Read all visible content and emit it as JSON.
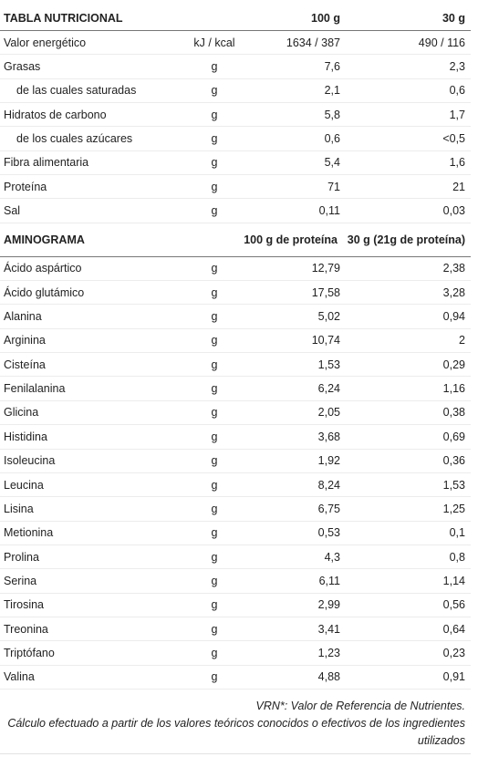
{
  "nutrition": {
    "header": {
      "title": "TABLA NUTRICIONAL",
      "col1": "100 g",
      "col2": "30 g"
    },
    "rows": [
      {
        "label": "Valor energético",
        "unit": "kJ / kcal",
        "v1": "1634 / 387",
        "v2": "490 / 116",
        "sub": false
      },
      {
        "label": "Grasas",
        "unit": "g",
        "v1": "7,6",
        "v2": "2,3",
        "sub": false
      },
      {
        "label": "de las cuales saturadas",
        "unit": "g",
        "v1": "2,1",
        "v2": "0,6",
        "sub": true
      },
      {
        "label": "Hidratos de carbono",
        "unit": "g",
        "v1": "5,8",
        "v2": "1,7",
        "sub": false
      },
      {
        "label": "de los cuales azúcares",
        "unit": "g",
        "v1": "0,6",
        "v2": "<0,5",
        "sub": true
      },
      {
        "label": "Fibra alimentaria",
        "unit": "g",
        "v1": "5,4",
        "v2": "1,6",
        "sub": false
      },
      {
        "label": "Proteína",
        "unit": "g",
        "v1": "71",
        "v2": "21",
        "sub": false
      },
      {
        "label": "Sal",
        "unit": "g",
        "v1": "0,11",
        "v2": "0,03",
        "sub": false
      }
    ]
  },
  "aminogram": {
    "header": {
      "title": "AMINOGRAMA",
      "col1": "100 g de proteína",
      "col2": "30 g (21g de proteína)"
    },
    "rows": [
      {
        "label": "Ácido aspártico",
        "unit": "g",
        "v1": "12,79",
        "v2": "2,38"
      },
      {
        "label": "Ácido glutámico",
        "unit": "g",
        "v1": "17,58",
        "v2": "3,28"
      },
      {
        "label": "Alanina",
        "unit": "g",
        "v1": "5,02",
        "v2": "0,94"
      },
      {
        "label": "Arginina",
        "unit": "g",
        "v1": "10,74",
        "v2": "2"
      },
      {
        "label": "Cisteína",
        "unit": "g",
        "v1": "1,53",
        "v2": "0,29"
      },
      {
        "label": "Fenilalanina",
        "unit": "g",
        "v1": "6,24",
        "v2": "1,16"
      },
      {
        "label": "Glicina",
        "unit": "g",
        "v1": "2,05",
        "v2": "0,38"
      },
      {
        "label": "Histidina",
        "unit": "g",
        "v1": "3,68",
        "v2": "0,69"
      },
      {
        "label": "Isoleucina",
        "unit": "g",
        "v1": "1,92",
        "v2": "0,36"
      },
      {
        "label": "Leucina",
        "unit": "g",
        "v1": "8,24",
        "v2": "1,53"
      },
      {
        "label": "Lisina",
        "unit": "g",
        "v1": "6,75",
        "v2": "1,25"
      },
      {
        "label": "Metionina",
        "unit": "g",
        "v1": "0,53",
        "v2": "0,1"
      },
      {
        "label": "Prolina",
        "unit": "g",
        "v1": "4,3",
        "v2": "0,8"
      },
      {
        "label": "Serina",
        "unit": "g",
        "v1": "6,11",
        "v2": "1,14"
      },
      {
        "label": "Tirosina",
        "unit": "g",
        "v1": "2,99",
        "v2": "0,56"
      },
      {
        "label": "Treonina",
        "unit": "g",
        "v1": "3,41",
        "v2": "0,64"
      },
      {
        "label": "Triptófano",
        "unit": "g",
        "v1": "1,23",
        "v2": "0,23"
      },
      {
        "label": "Valina",
        "unit": "g",
        "v1": "4,88",
        "v2": "0,91"
      }
    ]
  },
  "footer": {
    "note1": "VRN*: Valor de Referencia de Nutrientes.",
    "note2": "Cálculo efectuado a partir de los valores teóricos conocidos o efectivos de los ingredientes utilizados"
  }
}
